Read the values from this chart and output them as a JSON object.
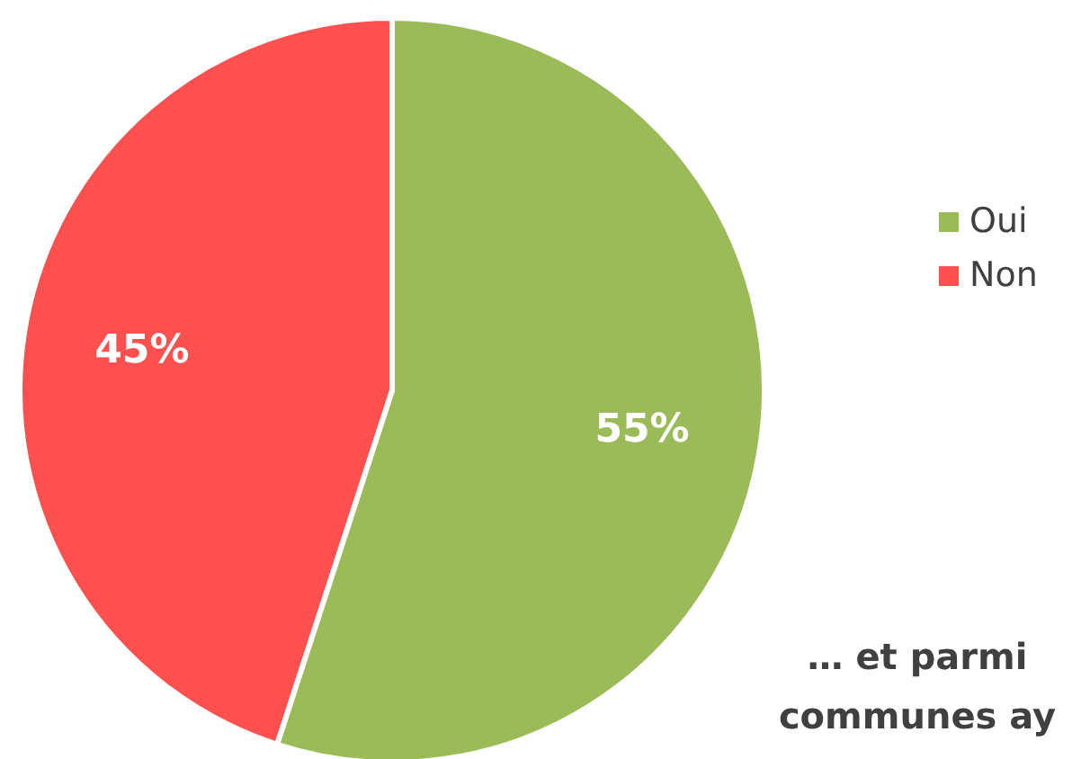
{
  "chart_data": {
    "type": "pie",
    "categories": [
      "Oui",
      "Non"
    ],
    "values": [
      55,
      45
    ],
    "colors": [
      "#9bbb59",
      "#ff5050"
    ],
    "value_labels": [
      "55%",
      "45%"
    ],
    "legend": "right",
    "annotations": [
      "… et parmi",
      "communes ay"
    ]
  }
}
